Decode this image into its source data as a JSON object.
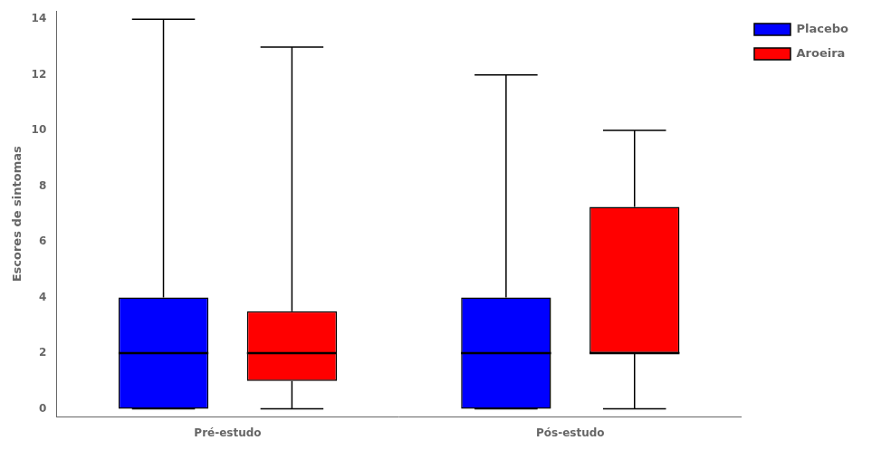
{
  "chart_data": {
    "type": "box",
    "categories": [
      "Pré-estudo",
      "Pós-estudo"
    ],
    "series": [
      {
        "name": "Placebo",
        "color": "#0000FF",
        "values": [
          {
            "whislo": 0,
            "q1": 0,
            "med": 2,
            "q3": 4,
            "whishi": 14
          },
          {
            "whislo": 0,
            "q1": 0,
            "med": 2,
            "q3": 4,
            "whishi": 12
          }
        ]
      },
      {
        "name": "Aroeira",
        "color": "#FF0000",
        "values": [
          {
            "whislo": 0,
            "q1": 1,
            "med": 2,
            "q3": 3.5,
            "whishi": 13
          },
          {
            "whislo": 0,
            "q1": 2,
            "med": 2,
            "q3": 7.25,
            "whishi": 10
          }
        ]
      }
    ],
    "ylabel": "Escores de sintomas",
    "ylim": [
      -0.3,
      14.3
    ],
    "yticks": [
      0,
      2,
      4,
      6,
      8,
      10,
      12,
      14
    ],
    "grid": false,
    "legend": "right"
  }
}
